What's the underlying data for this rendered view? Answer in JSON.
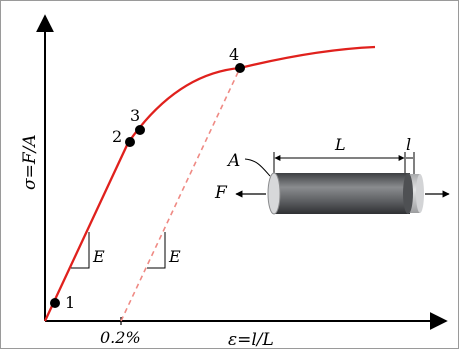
{
  "diagram": {
    "y_axis_label": "σ=F/A",
    "x_axis_label": "ε=l/L",
    "offset_tick_label": "0.2%",
    "slope_label_1": "E",
    "slope_label_2": "E",
    "points": [
      {
        "label": "1"
      },
      {
        "label": "2"
      },
      {
        "label": "3"
      },
      {
        "label": "4"
      }
    ],
    "specimen": {
      "area_label": "A",
      "force_label": "F",
      "length_label": "L",
      "elongation_label": "l"
    },
    "colors": {
      "curve": "#e0211d",
      "offset_line": "#ef8a84",
      "specimen_body": "#5f6164",
      "specimen_end": "#c7c8ca"
    }
  }
}
